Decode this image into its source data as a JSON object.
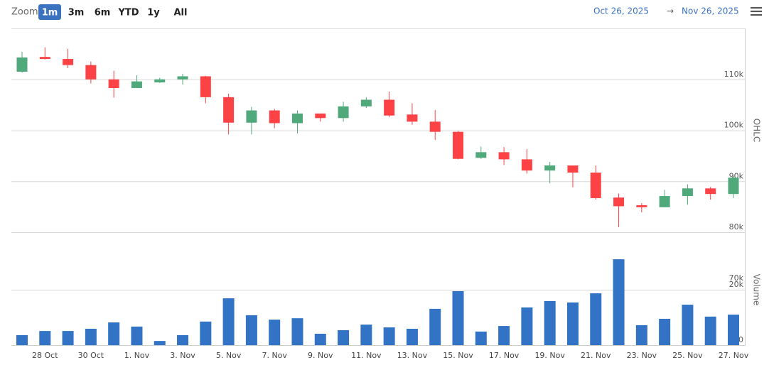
{
  "toolbar": {
    "zoom_label": "Zoom",
    "buttons": [
      "1m",
      "3m",
      "6m",
      "YTD",
      "1y",
      "All"
    ],
    "selected": 0,
    "range_from": "Oct 26, 2025",
    "range_to": "Nov 26, 2025"
  },
  "chart_data": {
    "type": "candlestick",
    "categories": [
      null,
      "28 Oct",
      null,
      "30 Oct",
      null,
      "1. Nov",
      null,
      "3. Nov",
      null,
      "5. Nov",
      null,
      "7. Nov",
      null,
      "9. Nov",
      null,
      "11. Nov",
      null,
      "13. Nov",
      null,
      "15. Nov",
      null,
      "17. Nov",
      null,
      "19. Nov",
      null,
      "21. Nov",
      null,
      "23. Nov",
      null,
      "25. Nov",
      null,
      "27. Nov"
    ],
    "series": [
      {
        "name": "OHLC",
        "color_up": "#4fa97a",
        "color_down": "#fc4245",
        "open": [
          111500,
          114400,
          114000,
          112800,
          110000,
          108300,
          109400,
          110000,
          110600,
          106500,
          101500,
          103900,
          101400,
          103300,
          102400,
          104700,
          106000,
          103100,
          101700,
          99700,
          94600,
          95700,
          94300,
          92100,
          93100,
          91700,
          86800,
          85300,
          84900,
          87100,
          88600,
          87500
        ],
        "high": [
          115400,
          116300,
          116000,
          113500,
          111700,
          110800,
          110300,
          111100,
          110700,
          107200,
          104600,
          104200,
          103900,
          103300,
          105600,
          106500,
          107600,
          105300,
          104000,
          99900,
          96800,
          96700,
          96300,
          93800,
          93100,
          93100,
          87600,
          85700,
          88300,
          89400,
          88900,
          91000
        ],
        "low": [
          111300,
          113900,
          112200,
          109200,
          106400,
          108300,
          109300,
          109000,
          105300,
          99200,
          99200,
          100400,
          99400,
          101700,
          101700,
          104400,
          102600,
          101100,
          98100,
          94300,
          94400,
          93200,
          91500,
          89600,
          88800,
          86400,
          81000,
          83900,
          84900,
          85400,
          86400,
          86700
        ],
        "close": [
          114300,
          114000,
          112800,
          110000,
          108300,
          109600,
          110000,
          110600,
          106500,
          101500,
          103900,
          101400,
          103300,
          102400,
          104700,
          106000,
          102900,
          101700,
          99700,
          94400,
          95700,
          94300,
          92100,
          93100,
          91700,
          86700,
          85100,
          84900,
          87100,
          88600,
          87500,
          90700
        ]
      },
      {
        "name": "Volume",
        "type": "bar",
        "axis": "y2",
        "color": "#3273c6",
        "values": [
          3600,
          5100,
          5100,
          5900,
          8200,
          6700,
          1500,
          3600,
          8500,
          16900,
          10800,
          9200,
          9700,
          4100,
          5400,
          7400,
          6400,
          5900,
          13100,
          19500,
          4900,
          6900,
          13600,
          15900,
          15400,
          18700,
          31000,
          7200,
          9500,
          14600,
          10300,
          11000
        ]
      }
    ],
    "ylim": [
      80000,
      120000
    ],
    "yticks": [
      {
        "value": 70000,
        "label": "70k"
      },
      {
        "value": 80000,
        "label": "80k"
      },
      {
        "value": 90000,
        "label": "90k"
      },
      {
        "value": 100000,
        "label": "100k"
      },
      {
        "value": 110000,
        "label": "110k"
      }
    ],
    "y2lim": [
      0,
      40000
    ],
    "y2ticks": [
      0,
      {
        "value": 20000,
        "label": "20k"
      }
    ],
    "grid": true
  }
}
